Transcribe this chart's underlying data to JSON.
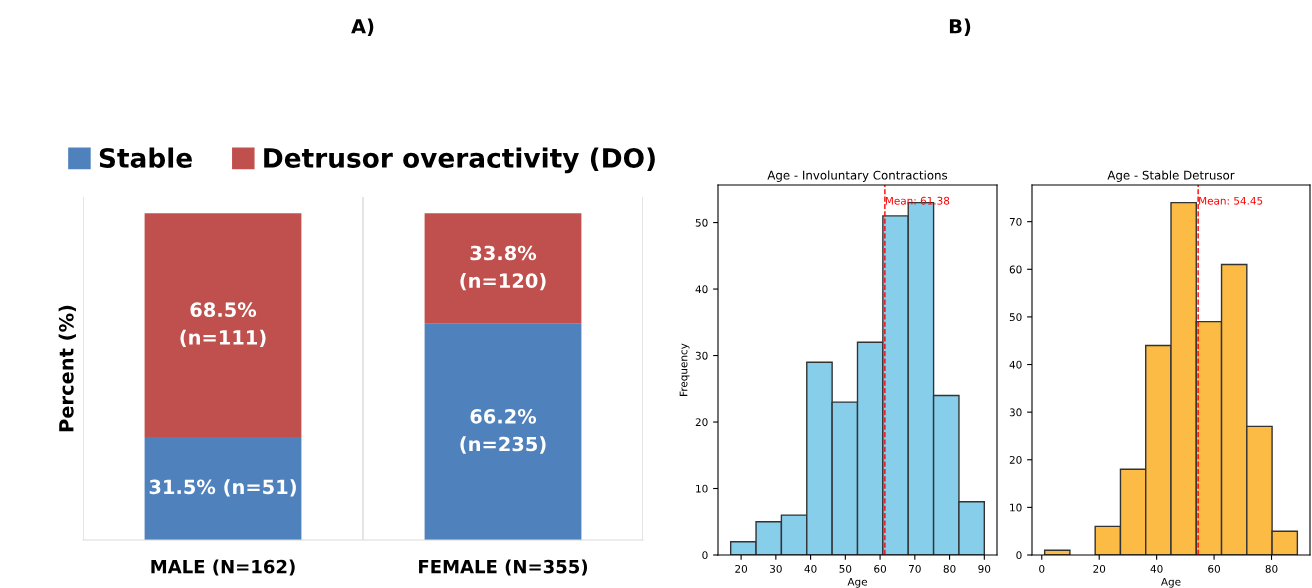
{
  "chart_data": [
    {
      "type": "bar",
      "title": "A)",
      "ylabel": "Percent (%)",
      "stacked": true,
      "categories": [
        "MALE (N=162)",
        "FEMALE (N=355)"
      ],
      "legend": "top",
      "tick_labels": "x",
      "series": [
        {
          "name": "Stable",
          "color": "#4f81bd",
          "values": [
            31.5,
            66.2
          ],
          "value_labels": [
            "31.5% (n=51)",
            "66.2%\n(n=235)"
          ]
        },
        {
          "name": "Detrusor overactivity (DO)",
          "color": "#c0504d",
          "values": [
            68.5,
            33.8
          ],
          "value_labels": [
            "68.5%\n(n=111)",
            "33.8%\n(n=120)"
          ]
        }
      ]
    },
    {
      "type": "histogram",
      "title": "Age - Involuntary Contractions",
      "xlabel": "Age",
      "ylabel": "Frequency",
      "color": "#87ceeb",
      "bins": [
        17,
        24.3,
        31.6,
        38.9,
        46.2,
        53.5,
        60.8,
        68.1,
        75.4,
        82.7,
        90
      ],
      "values": [
        2,
        5,
        6,
        29,
        23,
        32,
        51,
        53,
        24,
        8
      ],
      "xlim": [
        13.35,
        93.65
      ],
      "xticks": [
        20,
        30,
        40,
        50,
        60,
        70,
        80,
        90
      ],
      "ylim": [
        0,
        55.65
      ],
      "yticks": [
        0,
        10,
        20,
        30,
        40,
        50
      ],
      "grid": false,
      "ref_lines": [
        {
          "axis": "x",
          "value": 61.38,
          "label": "Mean: 61.38",
          "color": "#ff0000",
          "line_style": "dashed"
        }
      ]
    },
    {
      "type": "histogram",
      "title": "Age - Stable Detrusor",
      "xlabel": "Age",
      "color": "#fbbb45",
      "annotations": [
        "B)"
      ],
      "bins": [
        1,
        9.8,
        18.6,
        27.4,
        36.2,
        45,
        53.8,
        62.6,
        71.4,
        80.2,
        89
      ],
      "values": [
        1,
        0,
        6,
        18,
        44,
        74,
        49,
        61,
        27,
        5
      ],
      "xlim": [
        -3.4,
        93.4
      ],
      "xticks": [
        0,
        20,
        40,
        60,
        80
      ],
      "ylim": [
        0,
        77.7
      ],
      "yticks": [
        0,
        10,
        20,
        30,
        40,
        50,
        60,
        70
      ],
      "grid": false,
      "ref_lines": [
        {
          "axis": "x",
          "value": 54.45,
          "label": "Mean: 54.45",
          "color": "#ff0000",
          "line_style": "dashed"
        }
      ]
    }
  ]
}
